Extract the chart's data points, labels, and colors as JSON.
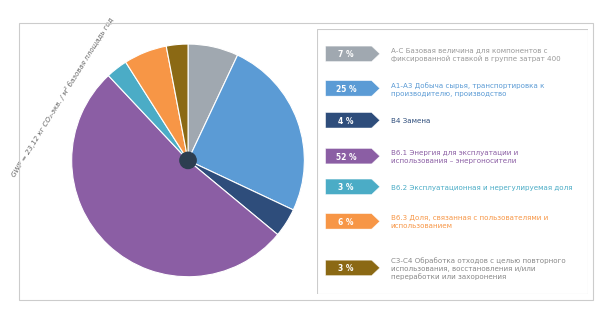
{
  "values": [
    7,
    25,
    4,
    52,
    3,
    6,
    3
  ],
  "labels": [
    "7 %",
    "25 %",
    "4 %",
    "52 %",
    "3 %",
    "6 %",
    "3 %"
  ],
  "colors": [
    "#a0a8b0",
    "#5b9bd5",
    "#2e4d7b",
    "#8B5EA4",
    "#4bacc6",
    "#f79646",
    "#8B6914"
  ],
  "legend_labels": [
    "А-С Базовая величина для компонентов с\nфиксированной ставкой в группе затрат 400",
    "А1-А3 Добыча сырья, транспортировка к\nпроизводителю, производство",
    "В4 Замена",
    "В6.1 Энергия для эксплуатации и\nиспользования – энергоносители",
    "В6.2 Эксплуатационная и нерегулируемая доля",
    "В6.3 Доля, связанная с пользователями и\nиспользованием",
    "С3-С4 Обработка отходов с целью повторного\nиспользования, восстановления и/или\nпереработки или захоронения"
  ],
  "legend_text_colors": [
    "#999999",
    "#5b9bd5",
    "#2e4d7b",
    "#8B5EA4",
    "#4bacc6",
    "#f79646",
    "#888888"
  ],
  "ylabel": "GWP = 23,12 кг CO₂-экв. / м² базовая площадь год",
  "startangle": 90,
  "background_color": "#ffffff",
  "center_color": "#2c3e50",
  "border_color": "#cccccc"
}
